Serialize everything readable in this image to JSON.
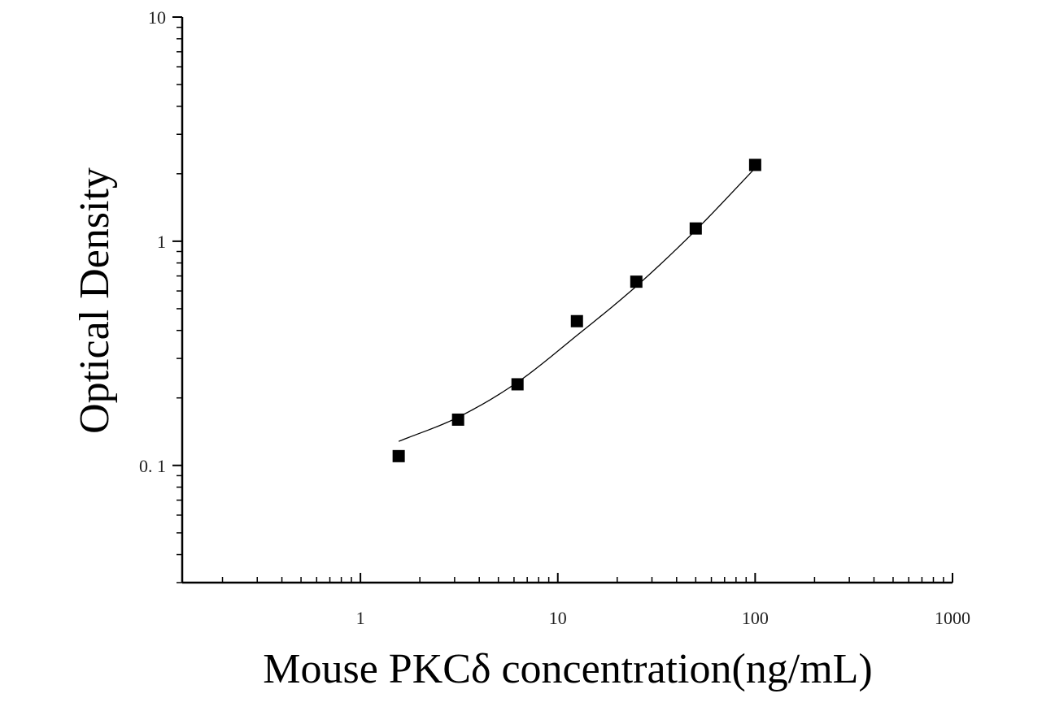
{
  "chart_data": {
    "type": "scatter",
    "title": "",
    "xlabel": "Mouse PKCδ concentration(ng/mL)",
    "ylabel": "Optical Density",
    "xscale": "log",
    "yscale": "log",
    "xlim": [
      0.125,
      1000
    ],
    "ylim": [
      0.03,
      10
    ],
    "xticks": [
      {
        "value": 1,
        "label": "1"
      },
      {
        "value": 10,
        "label": "10"
      },
      {
        "value": 100,
        "label": "100"
      },
      {
        "value": 1000,
        "label": "1000"
      }
    ],
    "yticks": [
      {
        "value": 0.1,
        "label": "0. 1"
      },
      {
        "value": 1,
        "label": "1"
      },
      {
        "value": 10,
        "label": "10"
      }
    ],
    "grid": false,
    "series": [
      {
        "x": [
          1.5625,
          3.125,
          6.25,
          12.5,
          25,
          50,
          100
        ],
        "y": [
          0.11,
          0.16,
          0.23,
          0.44,
          0.66,
          1.14,
          2.19
        ],
        "marker": "square",
        "color": "#000000"
      }
    ],
    "fit_curve": {
      "x": [
        1.5625,
        3.125,
        6.25,
        12.5,
        25,
        50,
        100
      ],
      "y": [
        0.128,
        0.164,
        0.235,
        0.38,
        0.63,
        1.12,
        2.12
      ],
      "color": "#000000"
    }
  }
}
